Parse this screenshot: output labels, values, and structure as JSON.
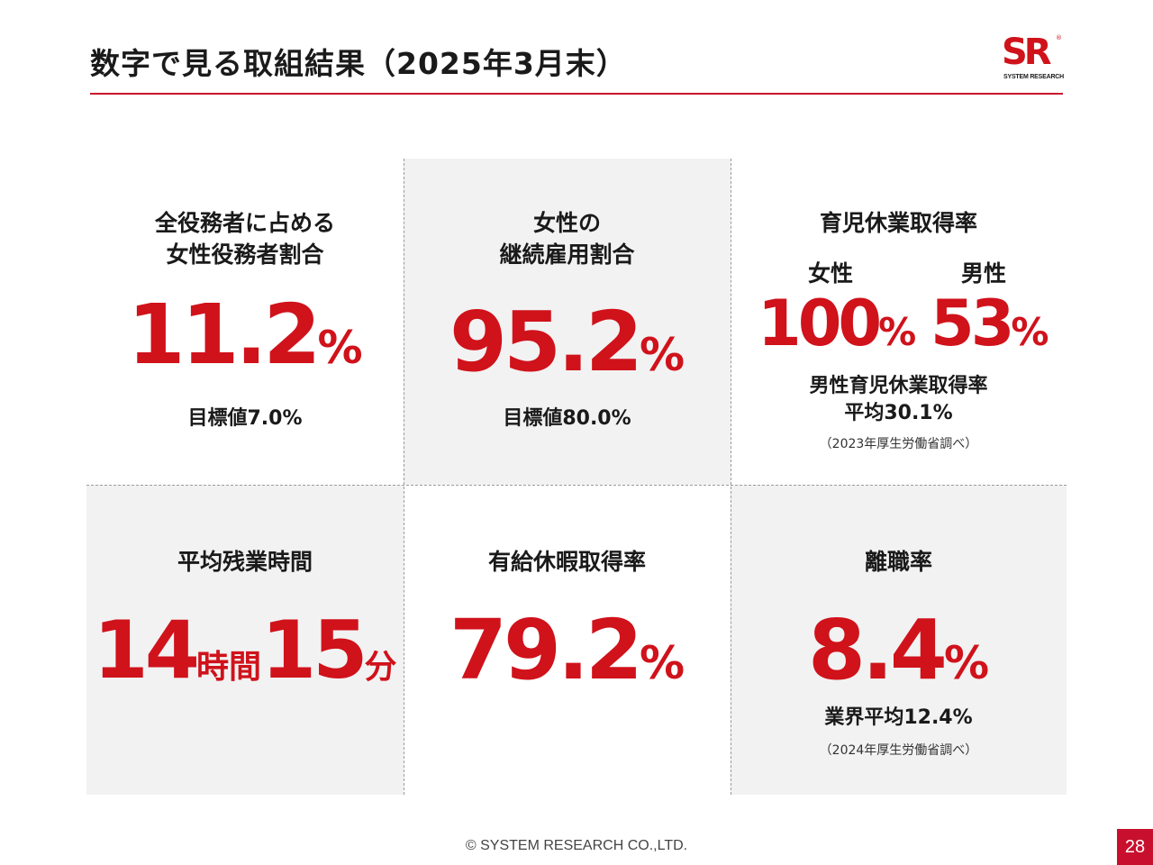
{
  "header": {
    "title": "数字で見る取組結果（2025年3月末）",
    "logo_letters": "SR",
    "logo_reg": "®",
    "logo_text": "SYSTEM RESEARCH"
  },
  "stats": {
    "women_officers": {
      "label_line1": "全役務者に占める",
      "label_line2": "女性役務者割合",
      "value": "11.2",
      "unit": "%",
      "target": "目標値7.0%"
    },
    "women_retention": {
      "label_line1": "女性の",
      "label_line2": "継続雇用割合",
      "value": "95.2",
      "unit": "%",
      "target": "目標値80.0%"
    },
    "childcare_leave": {
      "label": "育児休業取得率",
      "female_label": "女性",
      "female_value": "100",
      "female_unit": "%",
      "male_label": "男性",
      "male_value": "53",
      "male_unit": "%",
      "note_line1": "男性育児休業取得率",
      "note_line2": "平均30.1%",
      "source": "（2023年厚生労働省調べ）"
    },
    "overtime": {
      "label": "平均残業時間",
      "hours": "14",
      "hours_unit": "時間",
      "minutes": "15",
      "minutes_unit": "分"
    },
    "paid_leave": {
      "label": "有給休暇取得率",
      "value": "79.2",
      "unit": "%"
    },
    "turnover": {
      "label": "離職率",
      "value": "8.4",
      "unit": "%",
      "industry_avg": "業界平均12.4%",
      "source": "（2024年厚生労働省調べ）"
    }
  },
  "footer": {
    "copyright": "© SYSTEM RESEARCH CO.,LTD.",
    "page_number": "28"
  },
  "colors": {
    "accent": "#d0121b",
    "panel": "#f2f2f2"
  }
}
